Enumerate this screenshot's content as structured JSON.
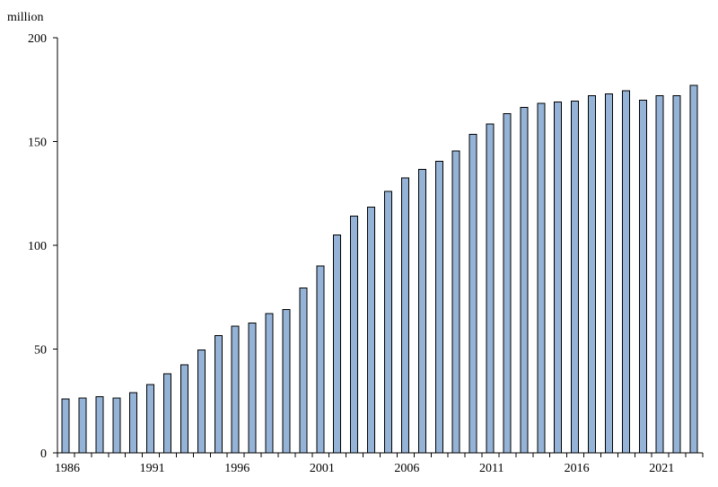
{
  "chart_data": {
    "type": "bar",
    "title": "",
    "xlabel": "",
    "ylabel": "million",
    "ylim": [
      0,
      200
    ],
    "y_ticks": [
      0,
      50,
      100,
      150,
      200
    ],
    "x_tick_labels": [
      "1986",
      "1991",
      "1996",
      "2001",
      "2006",
      "2011",
      "2016",
      "2021"
    ],
    "grid": false,
    "legend": "none",
    "bar_color": "#95b3d7",
    "bar_edge_color": "#000000",
    "categories": [
      "1986",
      "1987",
      "1988",
      "1989",
      "1990",
      "1991",
      "1992",
      "1993",
      "1994",
      "1995",
      "1996",
      "1997",
      "1998",
      "1999",
      "2000",
      "2001",
      "2002",
      "2003",
      "2004",
      "2005",
      "2006",
      "2007",
      "2008",
      "2009",
      "2010",
      "2011",
      "2012",
      "2013",
      "2014",
      "2015",
      "2016",
      "2017",
      "2018",
      "2019",
      "2020",
      "2021",
      "2022",
      "2023"
    ],
    "values": [
      26,
      26.5,
      27,
      26.5,
      29,
      33,
      38,
      42.5,
      49.5,
      56.5,
      61,
      62.5,
      67,
      69,
      79.5,
      90,
      105,
      114,
      118.5,
      126,
      132.5,
      136.5,
      140.5,
      145.5,
      153.5,
      158.5,
      163.5,
      166.5,
      168.5,
      169,
      169.5,
      172,
      173,
      174.5,
      170,
      172,
      172,
      177
    ]
  }
}
